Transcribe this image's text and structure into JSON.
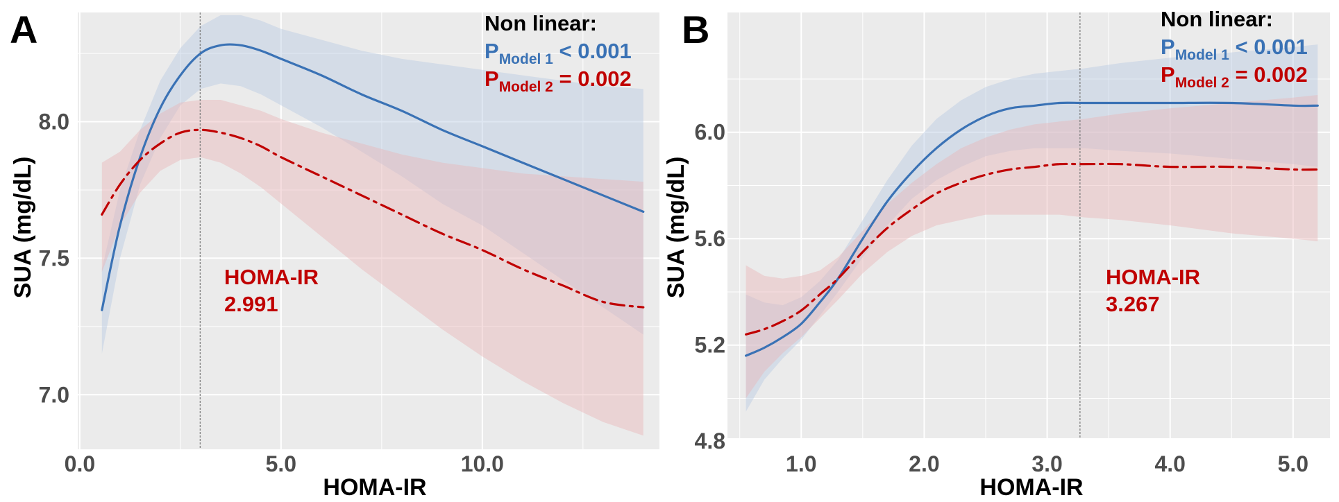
{
  "chart_data": [
    {
      "panel": "A",
      "type": "line",
      "xlabel": "HOMA-IR",
      "ylabel": "SUA (mg/dL)",
      "xlim": [
        -0.05,
        14.4
      ],
      "ylim": [
        6.8,
        8.4
      ],
      "xticks": [
        0.0,
        5.0,
        10.0
      ],
      "xtick_labels": [
        "0.0",
        "5.0",
        "10.0"
      ],
      "yticks": [
        7.0,
        7.5,
        8.0
      ],
      "ytick_labels": [
        "7.0",
        "7.5",
        "8.0"
      ],
      "grid": true,
      "cutoff": {
        "x": 2.991,
        "label": "HOMA-IR",
        "value": "2.991"
      },
      "annotation": {
        "heading": "Non linear:",
        "model1": {
          "p": "P",
          "sub": "Model 1",
          "rest": " < 0.001",
          "color": "#3a72b5"
        },
        "model2": {
          "p": "P",
          "sub": "Model 2",
          "rest": " = 0.002",
          "color": "#c00000"
        }
      },
      "series": [
        {
          "name": "Model 1",
          "color": "#3a72b5",
          "style": "solid",
          "x": [
            0.55,
            1.0,
            1.5,
            2.0,
            2.5,
            3.0,
            3.5,
            4.0,
            4.5,
            5.0,
            6.0,
            7.0,
            8.0,
            9.0,
            10.0,
            11.0,
            12.0,
            13.0,
            14.0
          ],
          "y": [
            7.31,
            7.62,
            7.87,
            8.05,
            8.17,
            8.25,
            8.28,
            8.28,
            8.26,
            8.23,
            8.17,
            8.1,
            8.04,
            7.97,
            7.91,
            7.85,
            7.79,
            7.73,
            7.67
          ],
          "lower": [
            7.15,
            7.5,
            7.77,
            7.94,
            8.06,
            8.12,
            8.14,
            8.13,
            8.1,
            8.06,
            7.98,
            7.89,
            7.8,
            7.7,
            7.62,
            7.52,
            7.42,
            7.32,
            7.22
          ],
          "upper": [
            7.46,
            7.75,
            7.97,
            8.15,
            8.27,
            8.35,
            8.39,
            8.39,
            8.37,
            8.34,
            8.3,
            8.26,
            8.23,
            8.21,
            8.19,
            8.17,
            8.15,
            8.13,
            8.12
          ]
        },
        {
          "name": "Model 2",
          "color": "#c00000",
          "style": "dashdot",
          "x": [
            0.55,
            1.0,
            1.5,
            2.0,
            2.5,
            3.0,
            3.5,
            4.0,
            4.5,
            5.0,
            6.0,
            7.0,
            8.0,
            9.0,
            10.0,
            11.0,
            12.0,
            13.0,
            14.0
          ],
          "y": [
            7.66,
            7.77,
            7.86,
            7.92,
            7.96,
            7.97,
            7.96,
            7.94,
            7.91,
            7.87,
            7.8,
            7.73,
            7.66,
            7.59,
            7.53,
            7.46,
            7.4,
            7.34,
            7.32
          ],
          "lower": [
            7.45,
            7.62,
            7.74,
            7.82,
            7.86,
            7.87,
            7.85,
            7.81,
            7.76,
            7.7,
            7.58,
            7.46,
            7.35,
            7.24,
            7.14,
            7.05,
            6.97,
            6.9,
            6.85
          ],
          "upper": [
            7.85,
            7.89,
            7.97,
            8.03,
            8.07,
            8.08,
            8.08,
            8.06,
            8.04,
            8.01,
            7.96,
            7.92,
            7.88,
            7.85,
            7.83,
            7.81,
            7.8,
            7.79,
            7.78
          ]
        }
      ]
    },
    {
      "panel": "B",
      "type": "line",
      "xlabel": "HOMA-IR",
      "ylabel": "SUA (mg/dL)",
      "xlim": [
        0.4,
        5.3
      ],
      "ylim": [
        4.85,
        6.45
      ],
      "xticks": [
        1.0,
        2.0,
        3.0,
        4.0,
        5.0
      ],
      "xtick_labels": [
        "1.0",
        "2.0",
        "3.0",
        "4.0",
        "5.0"
      ],
      "yticks": [
        4.8,
        5.2,
        5.6,
        6.0
      ],
      "ytick_labels": [
        "4.8",
        "5.2",
        "5.6",
        "6.0"
      ],
      "grid": true,
      "cutoff": {
        "x": 3.267,
        "label": "HOMA-IR",
        "value": "3.267"
      },
      "annotation": {
        "heading": "Non linear:",
        "model1": {
          "p": "P",
          "sub": "Model 1",
          "rest": " < 0.001",
          "color": "#3a72b5"
        },
        "model2": {
          "p": "P",
          "sub": "Model 2",
          "rest": " = 0.002",
          "color": "#c00000"
        }
      },
      "series": [
        {
          "name": "Model 1",
          "color": "#3a72b5",
          "style": "solid",
          "x": [
            0.55,
            0.7,
            0.85,
            1.0,
            1.15,
            1.3,
            1.5,
            1.7,
            1.9,
            2.1,
            2.3,
            2.5,
            2.7,
            2.9,
            3.1,
            3.3,
            3.6,
            4.0,
            4.5,
            5.0,
            5.2
          ],
          "y": [
            5.16,
            5.19,
            5.23,
            5.28,
            5.36,
            5.45,
            5.6,
            5.74,
            5.85,
            5.94,
            6.01,
            6.06,
            6.09,
            6.1,
            6.11,
            6.11,
            6.11,
            6.11,
            6.11,
            6.1,
            6.1
          ],
          "lower": [
            4.95,
            5.07,
            5.15,
            5.22,
            5.31,
            5.4,
            5.53,
            5.65,
            5.75,
            5.82,
            5.87,
            5.91,
            5.93,
            5.94,
            5.94,
            5.94,
            5.93,
            5.92,
            5.9,
            5.88,
            5.87
          ],
          "upper": [
            5.39,
            5.36,
            5.35,
            5.38,
            5.44,
            5.52,
            5.67,
            5.82,
            5.95,
            6.05,
            6.12,
            6.17,
            6.2,
            6.22,
            6.23,
            6.24,
            6.26,
            6.28,
            6.3,
            6.32,
            6.33
          ]
        },
        {
          "name": "Model 2",
          "color": "#c00000",
          "style": "dashdot",
          "x": [
            0.55,
            0.7,
            0.85,
            1.0,
            1.15,
            1.3,
            1.5,
            1.7,
            1.9,
            2.1,
            2.3,
            2.5,
            2.7,
            2.9,
            3.1,
            3.3,
            3.6,
            4.0,
            4.5,
            5.0,
            5.2
          ],
          "y": [
            5.24,
            5.26,
            5.29,
            5.33,
            5.39,
            5.45,
            5.55,
            5.64,
            5.71,
            5.77,
            5.81,
            5.84,
            5.86,
            5.87,
            5.88,
            5.88,
            5.88,
            5.87,
            5.87,
            5.86,
            5.86
          ],
          "lower": [
            5.0,
            5.1,
            5.17,
            5.23,
            5.3,
            5.37,
            5.47,
            5.55,
            5.61,
            5.65,
            5.67,
            5.69,
            5.69,
            5.69,
            5.69,
            5.68,
            5.67,
            5.65,
            5.62,
            5.6,
            5.59
          ],
          "upper": [
            5.5,
            5.46,
            5.45,
            5.46,
            5.48,
            5.53,
            5.63,
            5.73,
            5.81,
            5.88,
            5.94,
            5.98,
            6.01,
            6.03,
            6.04,
            6.05,
            6.07,
            6.09,
            6.11,
            6.13,
            6.14
          ]
        }
      ]
    }
  ],
  "colors": {
    "panel_bg": "#ebebeb",
    "grid": "#ffffff",
    "blue_band": "#b8c9e2",
    "red_band": "#e9b5b8",
    "cutoff_line": "#7f7f7f"
  }
}
